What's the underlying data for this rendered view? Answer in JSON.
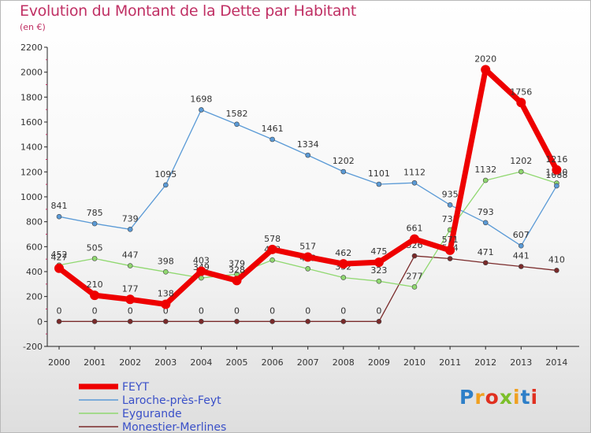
{
  "title": "Evolution du Montant de la Dette par Habitant",
  "subtitle": "(en €)",
  "logo": {
    "text": "Proxiti",
    "letters": [
      "P",
      "r",
      "o",
      "x",
      "i",
      "t",
      "i"
    ],
    "colors": [
      "#2e7fc8",
      "#f0a020",
      "#e03020",
      "#7cbf2a",
      "#f0a020",
      "#2e7fc8",
      "#e03020"
    ]
  },
  "chart_data": {
    "type": "line",
    "x": [
      "2000",
      "2001",
      "2002",
      "2003",
      "2004",
      "2005",
      "2006",
      "2007",
      "2008",
      "2009",
      "2010",
      "2011",
      "2012",
      "2013",
      "2014"
    ],
    "ylim": [
      -200,
      2200
    ],
    "yticks": [
      -200,
      0,
      200,
      400,
      600,
      800,
      1000,
      1200,
      1400,
      1600,
      1800,
      2000,
      2200
    ],
    "grid": false,
    "legend": "bottom-left",
    "series": [
      {
        "name": "Monestier-Merlines",
        "color": "#7a2a2a",
        "values": [
          0,
          0,
          0,
          0,
          0,
          0,
          0,
          0,
          0,
          0,
          526,
          504,
          471,
          441,
          410
        ]
      },
      {
        "name": "Eygurande",
        "color": "#90d870",
        "values": [
          452,
          505,
          447,
          398,
          349,
          379,
          493,
          423,
          352,
          323,
          277,
          735,
          1132,
          1202,
          1110
        ]
      },
      {
        "name": "Laroche-près-Feyt",
        "color": "#5a9ad6",
        "values": [
          841,
          785,
          739,
          1095,
          1698,
          1582,
          1461,
          1334,
          1202,
          1101,
          1112,
          935,
          793,
          607,
          1088
        ]
      },
      {
        "name": "FEYT",
        "color": "#ee0000",
        "values": [
          427,
          210,
          177,
          138,
          403,
          328,
          578,
          517,
          462,
          475,
          661,
          571,
          2020,
          1756,
          1216
        ]
      }
    ],
    "legend_order": [
      "FEYT",
      "Laroche-près-Feyt",
      "Eygurande",
      "Monestier-Merlines"
    ]
  }
}
